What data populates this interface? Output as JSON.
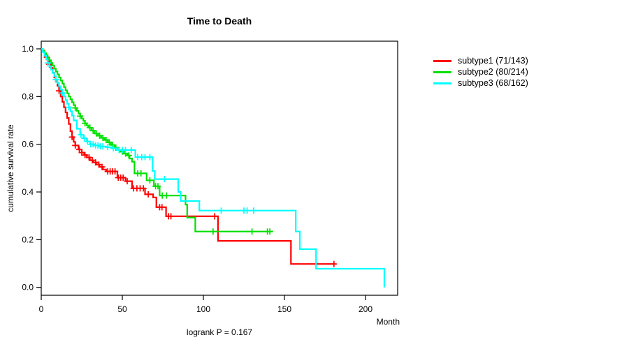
{
  "title": "Time to Death",
  "footer": {
    "logrank": "logrank P = 0.167"
  },
  "axes": {
    "x": {
      "label": "Month",
      "tick_labels": [
        "0",
        "50",
        "100",
        "150",
        "200"
      ],
      "tick_values": [
        0,
        50,
        100,
        150,
        200
      ]
    },
    "y": {
      "label": "cumulative survival rate",
      "tick_labels": [
        "0.0",
        "0.2",
        "0.4",
        "0.6",
        "0.8",
        "1.0"
      ],
      "tick_values": [
        0.0,
        0.2,
        0.4,
        0.6,
        0.8,
        1.0
      ]
    }
  },
  "chart_data": {
    "type": "line",
    "subtype": "kaplan-meier-step-survival",
    "title": "Time to Death",
    "xlabel": "Month",
    "ylabel": "cumulative survival rate",
    "xlim": [
      0,
      220
    ],
    "ylim": [
      0.0,
      1.0
    ],
    "grid": false,
    "legend_position": "right-outside",
    "annotation": "logrank P = 0.167",
    "series": [
      {
        "name": "subtype1",
        "label": "subtype1 (71/143)",
        "color": "#ff0000",
        "events": 71,
        "n": 143,
        "end_t": 181.5,
        "steps": [
          [
            0,
            1.0
          ],
          [
            1,
            0.993
          ],
          [
            2,
            0.979
          ],
          [
            3,
            0.965
          ],
          [
            4,
            0.95
          ],
          [
            5,
            0.935
          ],
          [
            6,
            0.92
          ],
          [
            7,
            0.9
          ],
          [
            8,
            0.88
          ],
          [
            9,
            0.863
          ],
          [
            10,
            0.845
          ],
          [
            11,
            0.824
          ],
          [
            12,
            0.8
          ],
          [
            13,
            0.778
          ],
          [
            14,
            0.755
          ],
          [
            15,
            0.733
          ],
          [
            16,
            0.71
          ],
          [
            17,
            0.685
          ],
          [
            18,
            0.655
          ],
          [
            19,
            0.63
          ],
          [
            20,
            0.61
          ],
          [
            21,
            0.595
          ],
          [
            23,
            0.578
          ],
          [
            25,
            0.565
          ],
          [
            26.5,
            0.555
          ],
          [
            28,
            0.545
          ],
          [
            30,
            0.533
          ],
          [
            32,
            0.524
          ],
          [
            34,
            0.515
          ],
          [
            36,
            0.505
          ],
          [
            38,
            0.494
          ],
          [
            40,
            0.486
          ],
          [
            47,
            0.46
          ],
          [
            52,
            0.445
          ],
          [
            56,
            0.415
          ],
          [
            64,
            0.39
          ],
          [
            69,
            0.377
          ],
          [
            71,
            0.336
          ],
          [
            77,
            0.298
          ],
          [
            109,
            0.195
          ],
          [
            154,
            0.098
          ]
        ],
        "censor_times": [
          3.5,
          5,
          11,
          19,
          21,
          23.5,
          25,
          27,
          29.5,
          31.5,
          33.5,
          35.5,
          37.5,
          41,
          42.5,
          44,
          45.5,
          47.5,
          49,
          50.5,
          53,
          57,
          59,
          61,
          63,
          66,
          73,
          74.5,
          78.5,
          80,
          107,
          180.5
        ]
      },
      {
        "name": "subtype2",
        "label": "subtype2 (80/214)",
        "color": "#00e000",
        "events": 80,
        "n": 214,
        "end_t": 143,
        "steps": [
          [
            0,
            1.0
          ],
          [
            1,
            0.992
          ],
          [
            2,
            0.982
          ],
          [
            3,
            0.972
          ],
          [
            4,
            0.962
          ],
          [
            5,
            0.952
          ],
          [
            6,
            0.941
          ],
          [
            7,
            0.93
          ],
          [
            8,
            0.917
          ],
          [
            9,
            0.905
          ],
          [
            10,
            0.893
          ],
          [
            11,
            0.88
          ],
          [
            12,
            0.867
          ],
          [
            13,
            0.854
          ],
          [
            14,
            0.84
          ],
          [
            15,
            0.826
          ],
          [
            16,
            0.813
          ],
          [
            17,
            0.8
          ],
          [
            18,
            0.788
          ],
          [
            19,
            0.776
          ],
          [
            20,
            0.764
          ],
          [
            21,
            0.752
          ],
          [
            22,
            0.74
          ],
          [
            23,
            0.729
          ],
          [
            24,
            0.718
          ],
          [
            25,
            0.708
          ],
          [
            26,
            0.698
          ],
          [
            27,
            0.688
          ],
          [
            28,
            0.679
          ],
          [
            29,
            0.67
          ],
          [
            31,
            0.657
          ],
          [
            33,
            0.645
          ],
          [
            35,
            0.636
          ],
          [
            37,
            0.627
          ],
          [
            39,
            0.618
          ],
          [
            41,
            0.608
          ],
          [
            43,
            0.597
          ],
          [
            45,
            0.586
          ],
          [
            47,
            0.576
          ],
          [
            49,
            0.569
          ],
          [
            51,
            0.561
          ],
          [
            53,
            0.553
          ],
          [
            54.5,
            0.54
          ],
          [
            56,
            0.527
          ],
          [
            57.5,
            0.478
          ],
          [
            65,
            0.449
          ],
          [
            69.5,
            0.424
          ],
          [
            73,
            0.385
          ],
          [
            89,
            0.347
          ],
          [
            90,
            0.293
          ],
          [
            95,
            0.234
          ]
        ],
        "censor_times": [
          21,
          24,
          27,
          30,
          32,
          34,
          36,
          38,
          40,
          42,
          44,
          46,
          48,
          50,
          52,
          54,
          59.5,
          61.5,
          67,
          70.5,
          72,
          74.6,
          77.3,
          106,
          130,
          139.5,
          141
        ]
      },
      {
        "name": "subtype3",
        "label": "subtype3 (68/162)",
        "color": "#00ffff",
        "events": 68,
        "n": 162,
        "end_t": 211.6,
        "steps": [
          [
            0,
            1.0
          ],
          [
            1,
            0.986
          ],
          [
            2,
            0.971
          ],
          [
            3,
            0.956
          ],
          [
            4,
            0.941
          ],
          [
            5,
            0.927
          ],
          [
            6,
            0.913
          ],
          [
            7,
            0.899
          ],
          [
            8,
            0.885
          ],
          [
            9,
            0.871
          ],
          [
            10,
            0.857
          ],
          [
            11,
            0.843
          ],
          [
            12,
            0.829
          ],
          [
            13,
            0.815
          ],
          [
            14,
            0.8
          ],
          [
            15,
            0.785
          ],
          [
            16,
            0.77
          ],
          [
            17,
            0.755
          ],
          [
            18,
            0.738
          ],
          [
            19,
            0.72
          ],
          [
            20,
            0.7
          ],
          [
            22,
            0.665
          ],
          [
            24,
            0.64
          ],
          [
            26,
            0.625
          ],
          [
            28,
            0.612
          ],
          [
            30,
            0.6
          ],
          [
            33,
            0.595
          ],
          [
            36,
            0.591
          ],
          [
            40,
            0.588
          ],
          [
            44,
            0.583
          ],
          [
            47,
            0.576
          ],
          [
            58,
            0.546
          ],
          [
            68.7,
            0.488
          ],
          [
            70,
            0.454
          ],
          [
            84.5,
            0.4
          ],
          [
            86,
            0.362
          ],
          [
            97.5,
            0.322
          ],
          [
            157,
            0.234
          ],
          [
            159.5,
            0.16
          ],
          [
            169.5,
            0.078
          ],
          [
            211.6,
            0.0
          ]
        ],
        "censor_times": [
          4,
          9,
          13,
          17,
          24.5,
          26.5,
          28.5,
          30.5,
          32,
          33.5,
          35,
          36.5,
          38,
          41,
          44.5,
          48,
          50,
          52,
          55.5,
          59.5,
          62,
          64,
          67,
          76,
          111,
          125,
          127,
          131
        ]
      }
    ]
  }
}
